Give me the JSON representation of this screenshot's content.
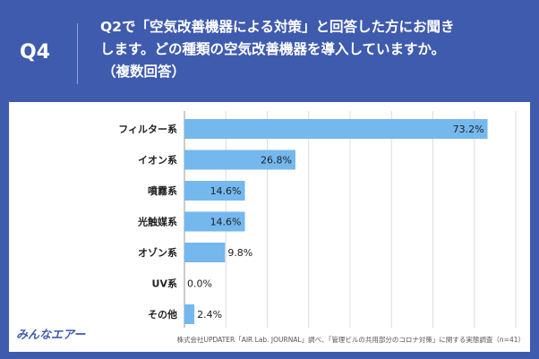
{
  "header": {
    "qnum": "Q4",
    "question_line1": "Q2で「空気改善機器による対策」と回答した方にお聞き",
    "question_line2": "します。どの種類の空気改善機器を導入していますか。",
    "question_line3": "（複数回答）"
  },
  "chart_data": {
    "type": "bar",
    "orientation": "horizontal",
    "categories": [
      "フィルター系",
      "イオン系",
      "噴霧系",
      "光触媒系",
      "オゾン系",
      "UV系",
      "その他"
    ],
    "values": [
      73.2,
      26.8,
      14.6,
      14.6,
      9.8,
      0.0,
      2.4
    ],
    "value_labels": [
      "73.2%",
      "26.8%",
      "14.6%",
      "14.6%",
      "9.8%",
      "0.0%",
      "2.4%"
    ],
    "xlim": [
      0,
      80
    ],
    "bar_color": "#74b8ee",
    "grid": true
  },
  "footer": {
    "logo": "みんなエアー",
    "source": "株式会社UPDATER「AIR Lab. JOURNAL」調べ、「管理ビルの共用部分のコロナ対策」に関する実態調査（n=41）"
  }
}
